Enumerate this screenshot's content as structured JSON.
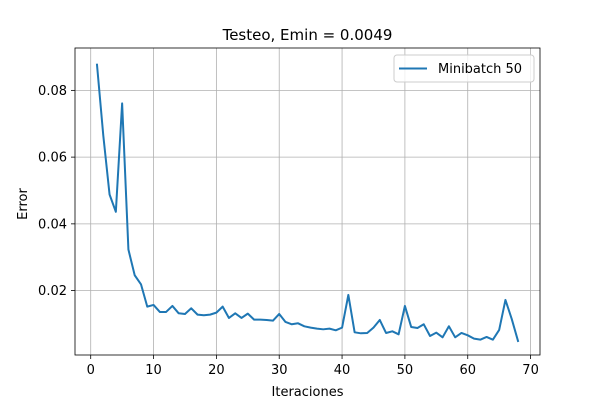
{
  "chart_data": {
    "type": "line",
    "title": "Testeo, Emin = 0.0049",
    "xlabel": "Iteraciones",
    "ylabel": "Error",
    "xlim": [
      -2.5,
      71.5
    ],
    "ylim": [
      0.0007,
      0.0927
    ],
    "x_ticks": [
      0,
      10,
      20,
      30,
      40,
      50,
      60,
      70
    ],
    "x_tick_labels": [
      "0",
      "10",
      "20",
      "30",
      "40",
      "50",
      "60",
      "70"
    ],
    "y_ticks": [
      0.02,
      0.04,
      0.06,
      0.08
    ],
    "y_tick_labels": [
      "0.02",
      "0.04",
      "0.06",
      "0.08"
    ],
    "grid": true,
    "legend_position": "top-right",
    "series": [
      {
        "name": "Minibatch 50",
        "color": "#1f77b4",
        "x": [
          1,
          2,
          3,
          4,
          5,
          6,
          7,
          8,
          9,
          10,
          11,
          12,
          13,
          14,
          15,
          16,
          17,
          18,
          19,
          20,
          21,
          22,
          23,
          24,
          25,
          26,
          27,
          28,
          29,
          30,
          31,
          32,
          33,
          34,
          35,
          36,
          37,
          38,
          39,
          40,
          41,
          42,
          43,
          44,
          45,
          46,
          47,
          48,
          49,
          50,
          51,
          52,
          53,
          54,
          55,
          56,
          57,
          58,
          59,
          60,
          61,
          62,
          63,
          64,
          65,
          66,
          67,
          68
        ],
        "y": [
          0.0877,
          0.0665,
          0.0488,
          0.0436,
          0.0761,
          0.0323,
          0.0246,
          0.0219,
          0.0152,
          0.0157,
          0.0136,
          0.0136,
          0.0154,
          0.0132,
          0.013,
          0.0147,
          0.0128,
          0.0126,
          0.0128,
          0.0134,
          0.0152,
          0.0118,
          0.0132,
          0.0118,
          0.0131,
          0.0113,
          0.0113,
          0.0112,
          0.011,
          0.013,
          0.0106,
          0.0099,
          0.0102,
          0.0093,
          0.0089,
          0.0086,
          0.0084,
          0.0086,
          0.0081,
          0.0089,
          0.0187,
          0.0075,
          0.0072,
          0.0073,
          0.0089,
          0.0112,
          0.0073,
          0.0078,
          0.0069,
          0.0154,
          0.0091,
          0.0088,
          0.0099,
          0.0064,
          0.0074,
          0.006,
          0.0093,
          0.006,
          0.0073,
          0.0066,
          0.0056,
          0.0053,
          0.0061,
          0.0053,
          0.0082,
          0.0172,
          0.0115,
          0.0049
        ]
      }
    ]
  }
}
